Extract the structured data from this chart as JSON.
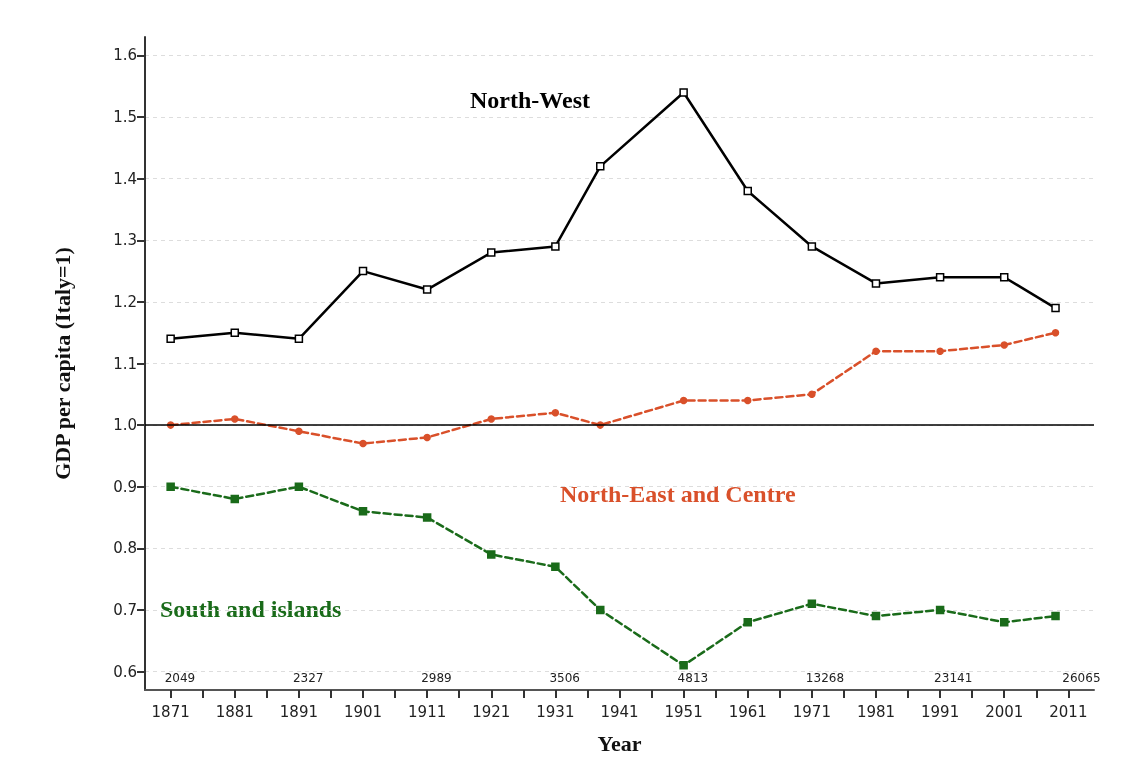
{
  "chart_data": {
    "type": "line",
    "xlabel": "Year",
    "ylabel": "GDP per capita (Italy=1)",
    "x": [
      1871,
      1881,
      1891,
      1901,
      1911,
      1921,
      1931,
      1938,
      1951,
      1961,
      1971,
      1981,
      1991,
      2001,
      2009
    ],
    "series": [
      {
        "name": "North-West",
        "color": "#000000",
        "marker": "square",
        "line_style": "solid",
        "values": [
          1.14,
          1.15,
          1.14,
          1.25,
          1.22,
          1.28,
          1.29,
          1.42,
          1.54,
          1.38,
          1.29,
          1.23,
          1.24,
          1.24,
          1.19
        ]
      },
      {
        "name": "North-East and Centre",
        "color": "#d9502a",
        "marker": "circle",
        "line_style": "dashed",
        "values": [
          1.0,
          1.01,
          0.99,
          0.97,
          0.98,
          1.01,
          1.02,
          1.0,
          1.04,
          1.04,
          1.05,
          1.12,
          1.12,
          1.13,
          1.15
        ]
      },
      {
        "name": "South and islands",
        "color": "#1a6b1a",
        "marker": "square",
        "line_style": "dashed",
        "values": [
          0.9,
          0.88,
          0.9,
          0.86,
          0.85,
          0.79,
          0.77,
          0.7,
          0.61,
          0.68,
          0.71,
          0.69,
          0.7,
          0.68,
          0.69
        ]
      }
    ],
    "xlim": [
      1867,
      2015
    ],
    "xticks": [
      1871,
      {
        "value": 1876,
        "label": null
      },
      1881,
      {
        "value": 1886,
        "label": null
      },
      1891,
      {
        "value": 1896,
        "label": null
      },
      1901,
      {
        "value": 1906,
        "label": null
      },
      1911,
      {
        "value": 1916,
        "label": null
      },
      1921,
      {
        "value": 1926,
        "label": null
      },
      1931,
      {
        "value": 1936,
        "label": null
      },
      1941,
      {
        "value": 1946,
        "label": null
      },
      1951,
      {
        "value": 1956,
        "label": null
      },
      1961,
      {
        "value": 1966,
        "label": null
      },
      1971,
      {
        "value": 1976,
        "label": null
      },
      1981,
      {
        "value": 1986,
        "label": null
      },
      1991,
      {
        "value": 1996,
        "label": null
      },
      2001,
      {
        "value": 2006,
        "label": null
      },
      2011
    ],
    "ylim": [
      0.57,
      1.63
    ],
    "yticks": [
      0.6,
      0.7,
      0.8,
      0.9,
      {
        "value": 1,
        "label": "1.0"
      },
      1.1,
      1.2,
      1.3,
      1.4,
      1.5,
      1.6
    ],
    "grid": "y",
    "ref_lines": [
      {
        "axis": "y",
        "value": 1,
        "color": "#000000"
      }
    ],
    "annotations": [
      "2049",
      "2327",
      "2989",
      "3506",
      "4813",
      "13268",
      "23141",
      "26065"
    ]
  }
}
